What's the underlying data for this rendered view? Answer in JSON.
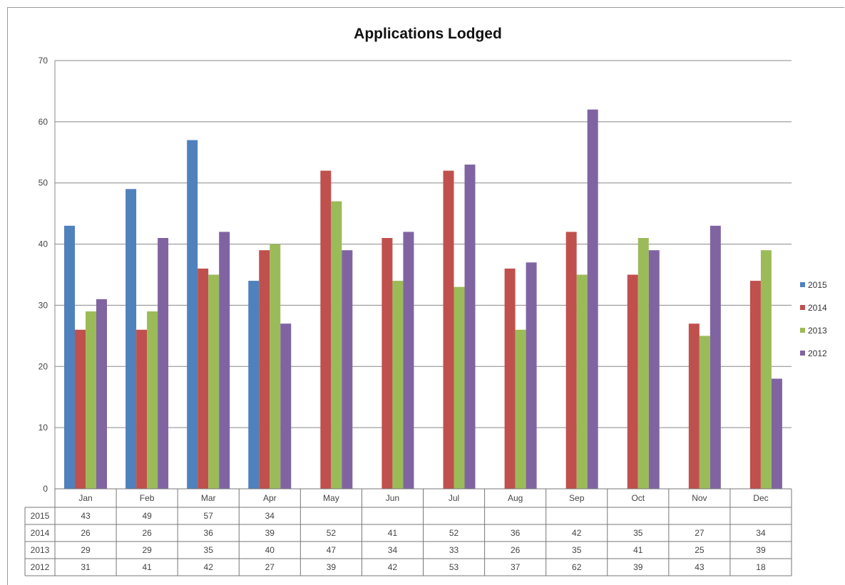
{
  "chart_data": {
    "type": "bar",
    "title": "Applications Lodged",
    "xlabel": "",
    "ylabel": "",
    "ylim": [
      0,
      70
    ],
    "yticks": [
      0,
      10,
      20,
      30,
      40,
      50,
      60,
      70
    ],
    "grid": true,
    "legend_position": "right",
    "categories": [
      "Jan",
      "Feb",
      "Mar",
      "Apr",
      "May",
      "Jun",
      "Jul",
      "Aug",
      "Sep",
      "Oct",
      "Nov",
      "Dec"
    ],
    "series": [
      {
        "name": "2015",
        "color": "#4f81bd",
        "values": [
          43,
          49,
          57,
          34,
          null,
          null,
          null,
          null,
          null,
          null,
          null,
          null
        ]
      },
      {
        "name": "2014",
        "color": "#c0504d",
        "values": [
          26,
          26,
          36,
          39,
          52,
          41,
          52,
          36,
          42,
          35,
          27,
          34
        ]
      },
      {
        "name": "2013",
        "color": "#9bbb59",
        "values": [
          29,
          29,
          35,
          40,
          47,
          34,
          33,
          26,
          35,
          41,
          25,
          39
        ]
      },
      {
        "name": "2012",
        "color": "#8064a2",
        "values": [
          31,
          41,
          42,
          27,
          39,
          42,
          53,
          37,
          62,
          39,
          43,
          18
        ]
      }
    ],
    "data_table": true
  }
}
